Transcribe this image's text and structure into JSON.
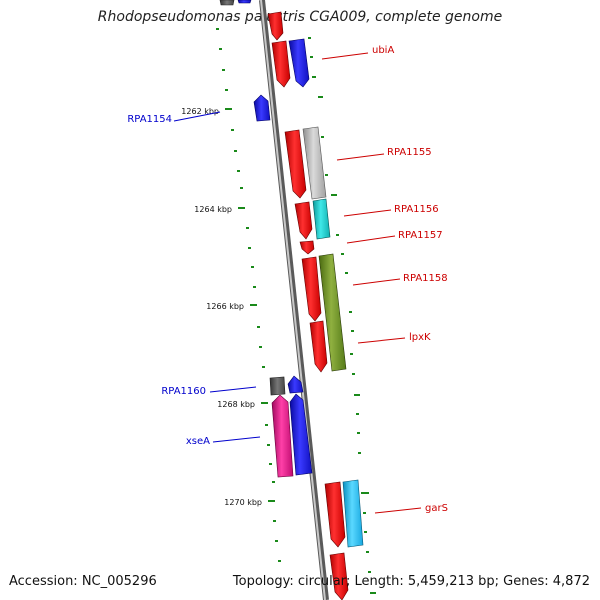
{
  "title": "Rhodopseudomonas palustris CGA009, complete genome",
  "accession": "Accession: NC_005296",
  "topology": "Topology: circular; Length: 5,459,213 bp; Genes: 4,872",
  "colors": {
    "backbone": "#8a8a8a",
    "tick": "#1a8a1a",
    "forward_label": "#cc0000",
    "reverse_label": "#0000cc",
    "red": "#ee0000",
    "blue": "#1a1aee",
    "grey": "#b8b8b8",
    "dark_grey": "#555555",
    "cyan": "#1ccccc",
    "sky": "#1cc4f0",
    "olive": "#6b8e23",
    "pink": "#e8108a"
  },
  "ticks": [
    {
      "label": "1262 kbp"
    },
    {
      "label": "1264 kbp"
    },
    {
      "label": "1266 kbp"
    },
    {
      "label": "1268 kbp"
    },
    {
      "label": "1270 kbp"
    }
  ],
  "genes": [
    {
      "name": "ubiA",
      "strand": "forward"
    },
    {
      "name": "RPA1154",
      "strand": "reverse"
    },
    {
      "name": "RPA1155",
      "strand": "forward"
    },
    {
      "name": "RPA1156",
      "strand": "forward"
    },
    {
      "name": "RPA1157",
      "strand": "forward"
    },
    {
      "name": "RPA1158",
      "strand": "forward"
    },
    {
      "name": "lpxK",
      "strand": "forward"
    },
    {
      "name": "RPA1160",
      "strand": "reverse"
    },
    {
      "name": "xseA",
      "strand": "reverse"
    },
    {
      "name": "garS",
      "strand": "forward"
    }
  ]
}
